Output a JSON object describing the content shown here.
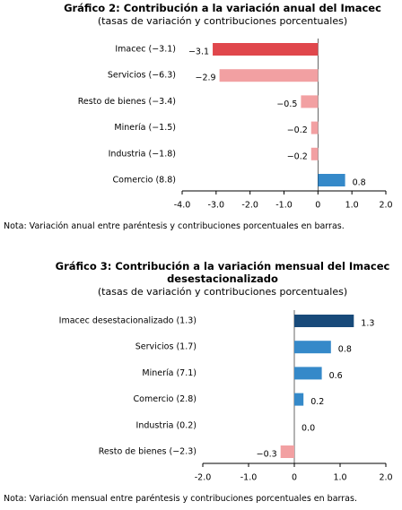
{
  "chart_data": [
    {
      "type": "bar",
      "orientation": "horizontal",
      "title": "Gráfico 2: Contribución a la variación anual del Imacec",
      "subtitle": "(tasas de variación y contribuciones porcentuales)",
      "categories": [
        "Imacec (−3.1)",
        "Servicios (−6.3)",
        "Resto de bienes (−3.4)",
        "Minería (−1.5)",
        "Industria (−1.8)",
        "Comercio (8.8)"
      ],
      "values": [
        -3.1,
        -2.9,
        -0.5,
        -0.2,
        -0.2,
        0.8
      ],
      "value_labels": [
        "−3.1",
        "−2.9",
        "−0.5",
        "−0.2",
        "−0.2",
        "0.8"
      ],
      "colors": [
        "#e0474c",
        "#f2a0a2",
        "#f2a0a2",
        "#f2a0a2",
        "#f2a0a2",
        "#3589c9"
      ],
      "xlim": [
        -4,
        2
      ],
      "xticks": [
        {
          "value": -4,
          "label": "-4.0"
        },
        {
          "value": -3,
          "label": "-3.0"
        },
        {
          "value": -2,
          "label": "-2.0"
        },
        {
          "value": -1,
          "label": "-1.0"
        },
        0,
        {
          "value": 1,
          "label": "1.0"
        },
        {
          "value": 2,
          "label": "2.0"
        }
      ],
      "grid": false,
      "note": "Nota: Variación anual entre paréntesis y contribuciones porcentuales en barras."
    },
    {
      "type": "bar",
      "orientation": "horizontal",
      "title": "Gráfico 3: Contribución a la variación mensual del Imacec desestacionalizado",
      "subtitle": "(tasas de variación y contribuciones porcentuales)",
      "categories": [
        "Imacec desestacionalizado (1.3)",
        "Servicios (1.7)",
        "Minería (7.1)",
        "Comercio (2.8)",
        "Industria (0.2)",
        "Resto de bienes (−2.3)"
      ],
      "values": [
        1.3,
        0.8,
        0.6,
        0.2,
        0.0,
        -0.3
      ],
      "value_labels": [
        "1.3",
        "0.8",
        "0.6",
        "0.2",
        "0.0",
        "−0.3"
      ],
      "colors": [
        "#184a7a",
        "#3589c9",
        "#3589c9",
        "#3589c9",
        "#3589c9",
        "#f2a0a2"
      ],
      "xlim": [
        -2,
        2
      ],
      "xticks": [
        {
          "value": -2,
          "label": "-2.0"
        },
        {
          "value": -1,
          "label": "-1.0"
        },
        0,
        {
          "value": 1,
          "label": "1.0"
        },
        {
          "value": 2,
          "label": "2.0"
        }
      ],
      "grid": false,
      "note": "Nota: Variación mensual entre paréntesis y contribuciones porcentuales en barras."
    }
  ]
}
